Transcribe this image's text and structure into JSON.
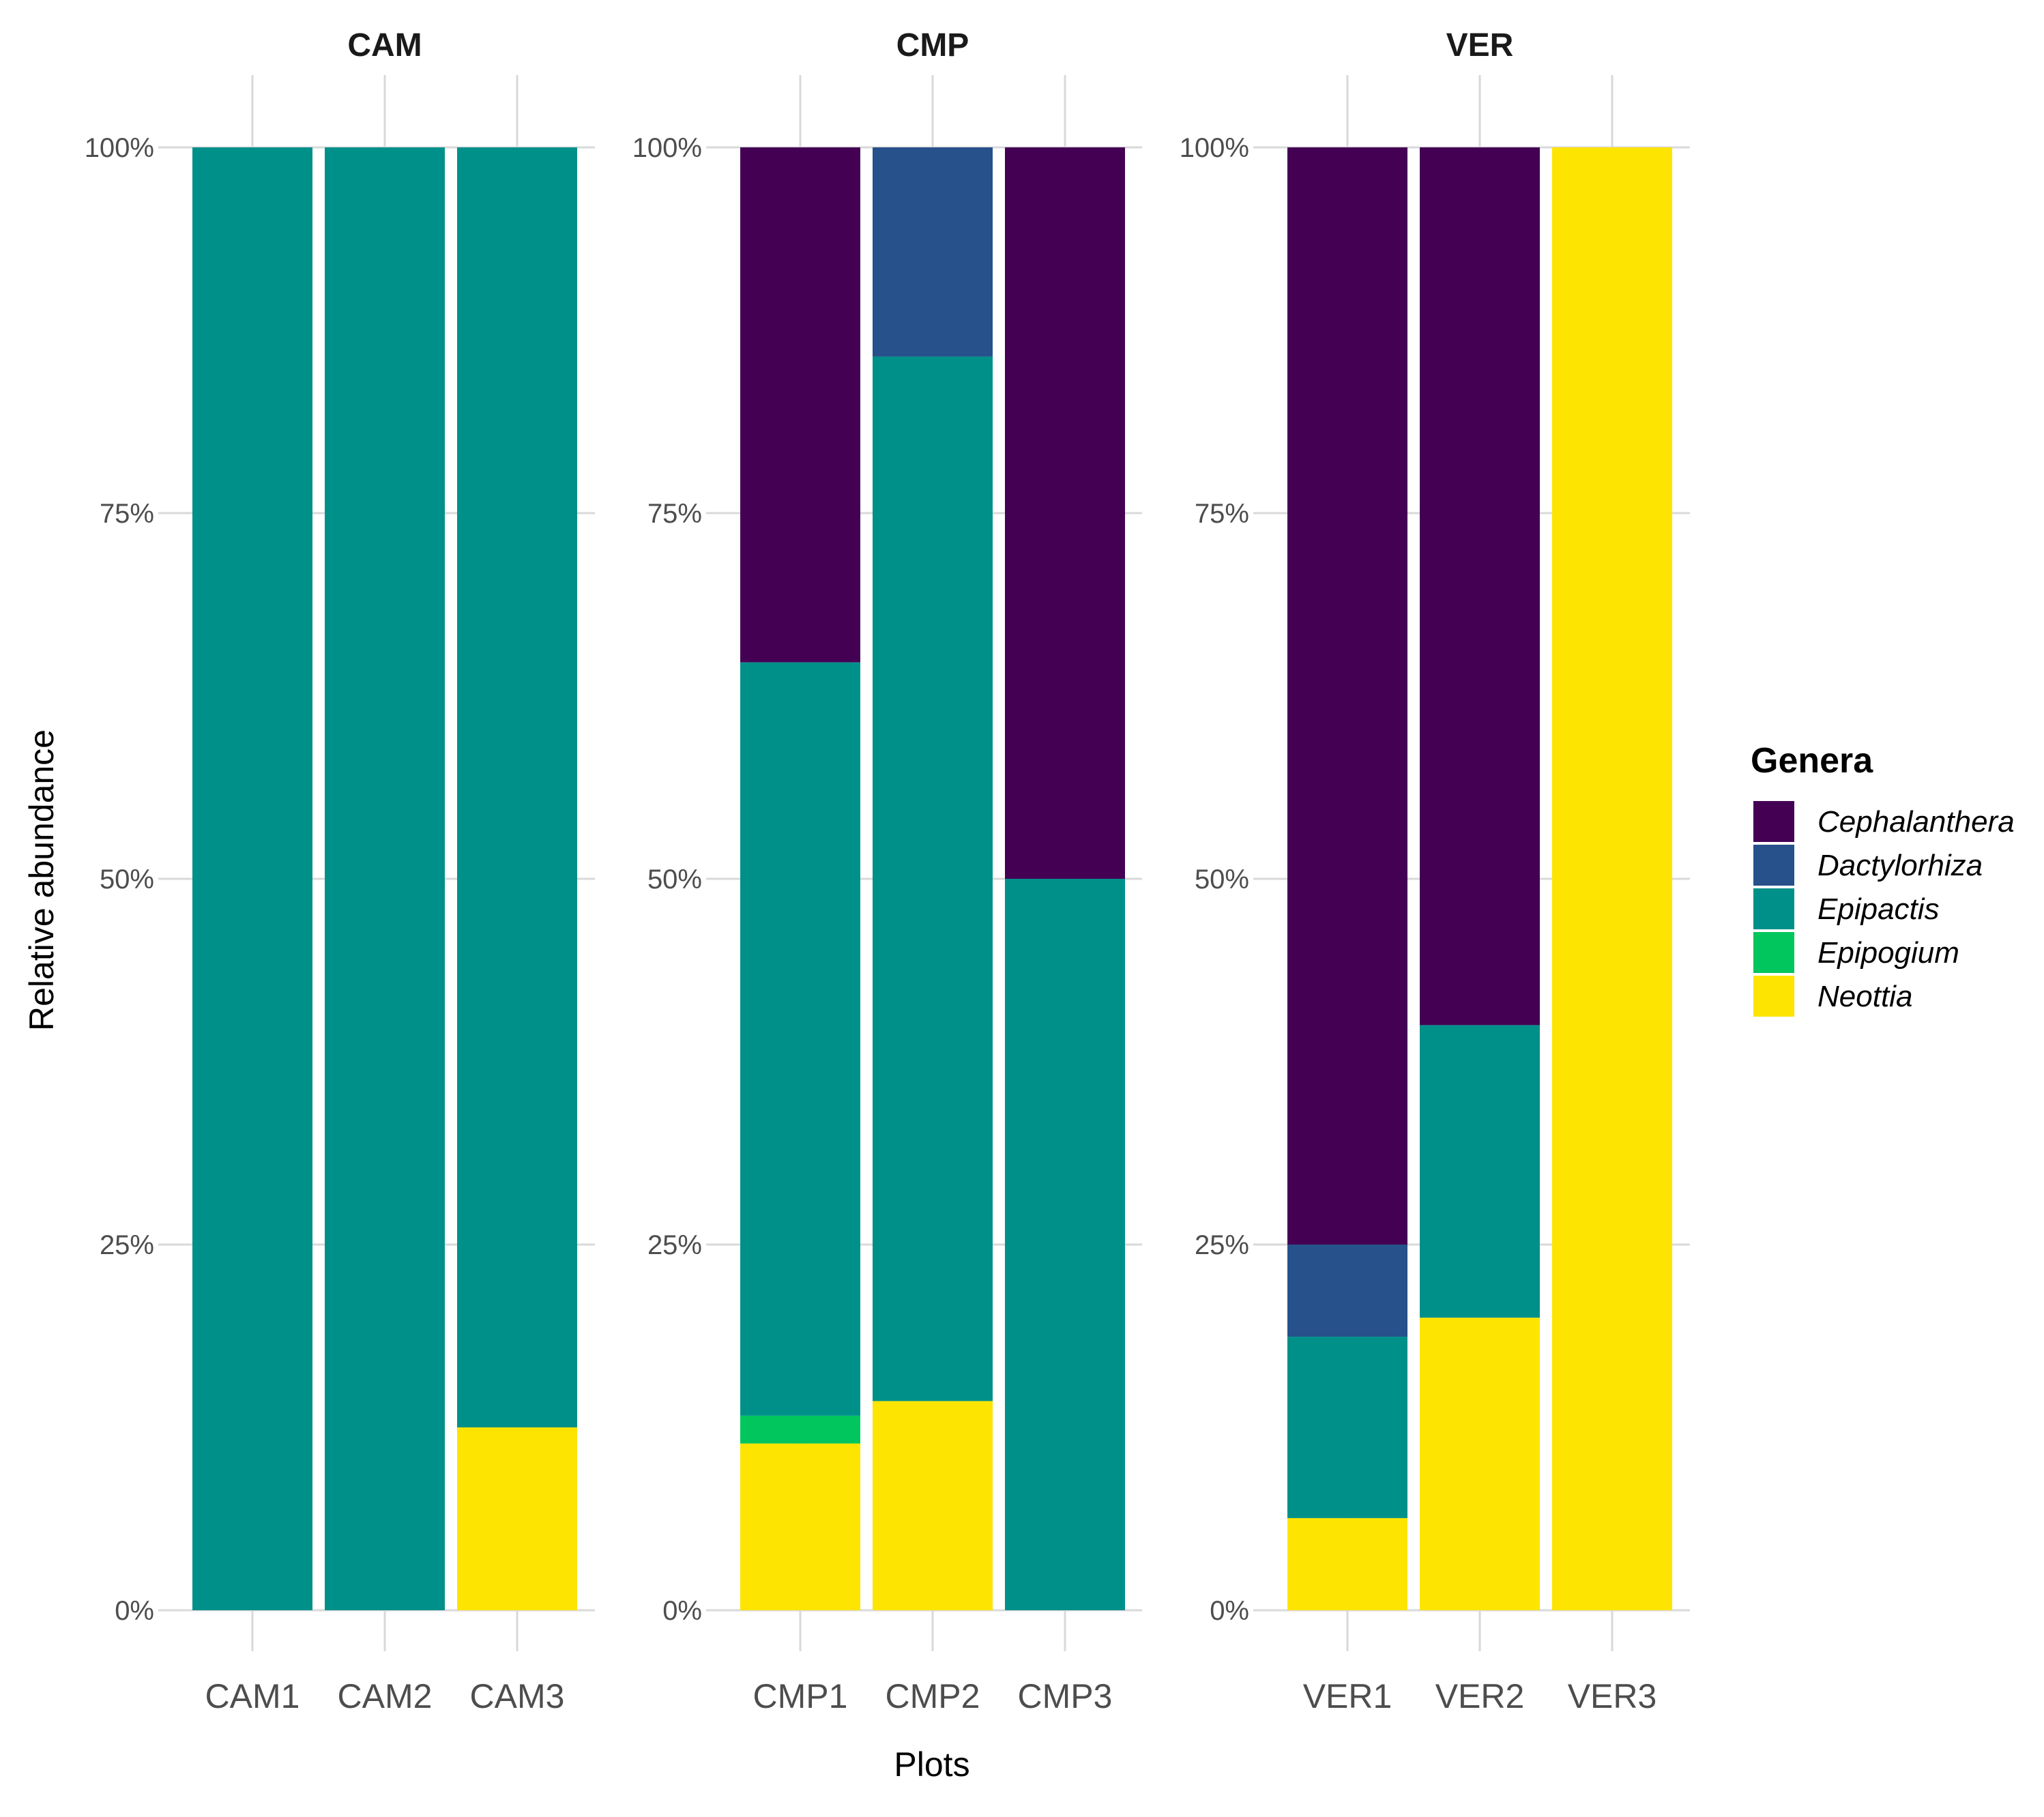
{
  "chart_data": {
    "type": "bar",
    "stacked": true,
    "xlabel": "Plots",
    "ylabel": "Relative abundance",
    "ylim": [
      0,
      1
    ],
    "yticks": [
      {
        "value": 0,
        "label": "0%"
      },
      {
        "value": 0.25,
        "label": "25%"
      },
      {
        "value": 0.5,
        "label": "50%"
      },
      {
        "value": 0.75,
        "label": "75%"
      },
      {
        "value": 1,
        "label": "100%"
      }
    ],
    "grid": true,
    "legend": {
      "title": "Genera",
      "position": "right",
      "entries": [
        {
          "name": "Cephalanthera",
          "color": "#440154"
        },
        {
          "name": "Dactylorhiza",
          "color": "#26518A"
        },
        {
          "name": "Epipactis",
          "color": "#00908A"
        },
        {
          "name": "Epipogium",
          "color": "#00C65D"
        },
        {
          "name": "Neottia",
          "color": "#FDE401"
        }
      ]
    },
    "stack_order_bottom_to_top": [
      "Neottia",
      "Epipogium",
      "Epipactis",
      "Dactylorhiza",
      "Cephalanthera"
    ],
    "facets": [
      {
        "title": "CAM",
        "categories": [
          "CAM1",
          "CAM2",
          "CAM3"
        ],
        "values": {
          "Cephalanthera": [
            0,
            0,
            0
          ],
          "Dactylorhiza": [
            0,
            0,
            0
          ],
          "Epipactis": [
            1.0,
            1.0,
            0.875
          ],
          "Epipogium": [
            0,
            0,
            0
          ],
          "Neottia": [
            0,
            0,
            0.125
          ]
        }
      },
      {
        "title": "CMP",
        "categories": [
          "CMP1",
          "CMP2",
          "CMP3"
        ],
        "values": {
          "Cephalanthera": [
            0.352,
            0,
            0.5
          ],
          "Dactylorhiza": [
            0,
            0.143,
            0
          ],
          "Epipactis": [
            0.515,
            0.714,
            0.5
          ],
          "Epipogium": [
            0.019,
            0,
            0
          ],
          "Neottia": [
            0.114,
            0.143,
            0
          ]
        }
      },
      {
        "title": "VER",
        "categories": [
          "VER1",
          "VER2",
          "VER3"
        ],
        "values": {
          "Cephalanthera": [
            0.75,
            0.6,
            0
          ],
          "Dactylorhiza": [
            0.063,
            0,
            0
          ],
          "Epipactis": [
            0.124,
            0.2,
            0
          ],
          "Epipogium": [
            0,
            0,
            0
          ],
          "Neottia": [
            0.063,
            0.2,
            1.0
          ]
        }
      }
    ]
  }
}
